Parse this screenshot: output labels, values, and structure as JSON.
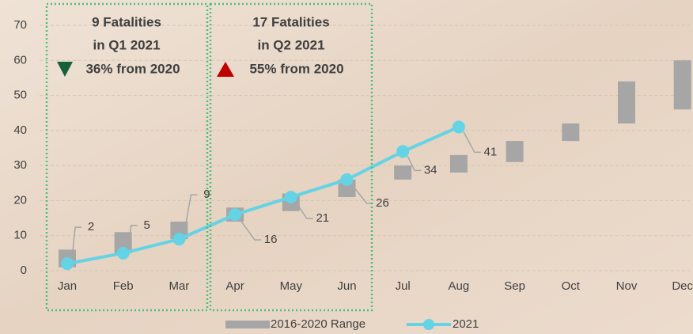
{
  "chart_data": {
    "type": "line",
    "categories": [
      "Jan",
      "Feb",
      "Mar",
      "Apr",
      "May",
      "Jun",
      "Jul",
      "Aug",
      "Sep",
      "Oct",
      "Nov",
      "Dec"
    ],
    "ylim": [
      0,
      70
    ],
    "yticks": [
      0,
      10,
      20,
      30,
      40,
      50,
      60,
      70
    ],
    "grid": true,
    "series": [
      {
        "name": "2016-2020 Range",
        "type": "range",
        "color": "#a6a6a6",
        "low": [
          1,
          5,
          9,
          14,
          17,
          21,
          26,
          28,
          31,
          37,
          42,
          46
        ],
        "high": [
          6,
          11,
          14,
          18,
          22,
          26,
          30,
          33,
          37,
          42,
          54,
          60
        ]
      },
      {
        "name": "2021",
        "type": "line",
        "color": "#63d3e5",
        "values": [
          2,
          5,
          9,
          16,
          21,
          26,
          34,
          41,
          null,
          null,
          null,
          null
        ]
      }
    ],
    "annotations": [
      {
        "lines": [
          "9 Fatalities",
          "in Q1 2021"
        ],
        "change": "36% from 2020",
        "color": "#1f9a5a",
        "change_color": "#17603a"
      },
      {
        "lines": [
          "17 Fatalities",
          "in Q2 2021"
        ],
        "change": "55% from 2020",
        "color": "#1f9a5a",
        "change_color": "#c00000"
      }
    ]
  }
}
